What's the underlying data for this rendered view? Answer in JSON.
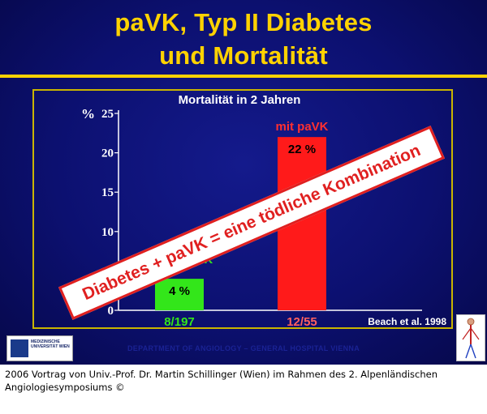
{
  "slide": {
    "title_line1": "paVK, Typ II Diabetes",
    "title_line2": "und Mortalität",
    "chart_title": "Mortalität in 2 Jahren",
    "unit": "%",
    "source": "Beach et al. 1998",
    "banner": "Diabetes + paVK = eine tödliche Kombination",
    "department": "DEPARTMENT OF ANGIOLOGY – GENERAL HOSPITAL VIENNA",
    "logo_text": "MEDIZINISCHE UNIVERSITÄT WIEN",
    "caption": "2006 Vortrag von Univ.-Prof. Dr. Martin Schillinger (Wien) im Rahmen des 2. Alpenländischen Angiologiesymposiums ©"
  },
  "chart_data": {
    "type": "bar",
    "title": "Mortalität in 2 Jahren",
    "categories": [
      "ohne paVK",
      "mit paVK"
    ],
    "values": [
      4,
      22
    ],
    "value_labels": [
      "4 %",
      "22 %"
    ],
    "counts": [
      "8/197",
      "12/55"
    ],
    "series_labels": [
      "paVK",
      "mit paVK"
    ],
    "colors": [
      "#33e61a",
      "#ff1a1a"
    ],
    "count_colors": [
      "#33e61a",
      "#ff6060"
    ],
    "yticks": [
      "0",
      "5",
      "10",
      "15",
      "20",
      "25"
    ],
    "ylim": [
      0,
      25
    ],
    "ylabel": "%"
  }
}
